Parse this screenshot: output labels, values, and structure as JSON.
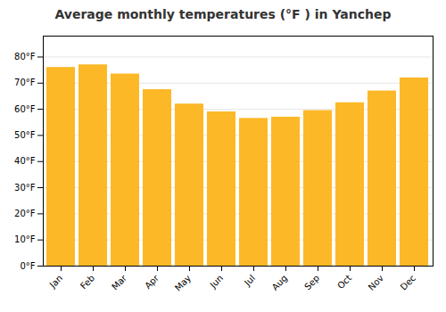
{
  "chart_data": {
    "type": "bar",
    "title": "Average monthly temperatures (°F ) in Yanchep",
    "categories": [
      "Jan",
      "Feb",
      "Mar",
      "Apr",
      "May",
      "Jun",
      "Jul",
      "Aug",
      "Sep",
      "Oct",
      "Nov",
      "Dec"
    ],
    "values": [
      76,
      77,
      73.5,
      67.5,
      62,
      59,
      56.5,
      57,
      59.5,
      62.5,
      67,
      72
    ],
    "color": "#FDB827",
    "ylim": [
      0,
      88
    ],
    "yticks": [
      {
        "value": 0,
        "label": "0°F"
      },
      {
        "value": 10,
        "label": "10°F"
      },
      {
        "value": 20,
        "label": "20°F"
      },
      {
        "value": 30,
        "label": "30°F"
      },
      {
        "value": 40,
        "label": "40°F"
      },
      {
        "value": 50,
        "label": "50°F"
      },
      {
        "value": 60,
        "label": "60°F"
      },
      {
        "value": 70,
        "label": "70°F"
      },
      {
        "value": 80,
        "label": "80°F"
      }
    ],
    "grid": true
  }
}
